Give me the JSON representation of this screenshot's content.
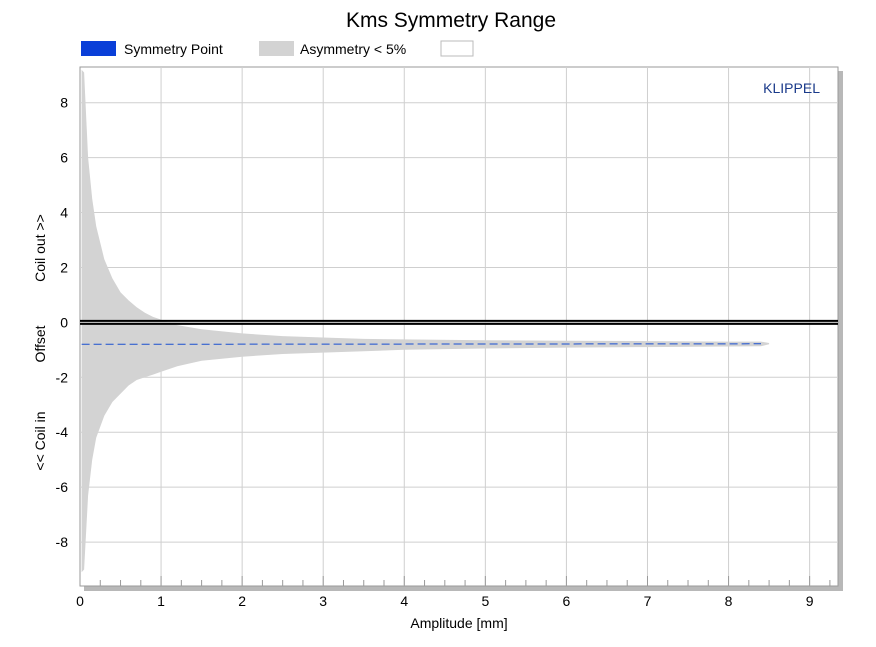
{
  "chart_data": {
    "type": "area",
    "title": "Kms Symmetry Range",
    "xlabel": "Amplitude [mm]",
    "ylabel_parts": [
      "<< Coil in",
      "Offset",
      "Coil out >>"
    ],
    "brand": "KLIPPEL",
    "xlim": [
      0,
      9.35
    ],
    "ylim": [
      -9.6,
      9.3
    ],
    "xticks": [
      "0",
      "1",
      "2",
      "3",
      "4",
      "5",
      "6",
      "7",
      "8",
      "9"
    ],
    "yticks": [
      "8",
      "6",
      "4",
      "2",
      "0",
      "-2",
      "-4",
      "-6",
      "-8"
    ],
    "grid": true,
    "legend": [
      {
        "name": "Symmetry Point",
        "color": "#0a3fd8"
      },
      {
        "name": "Asymmetry < 5%",
        "color": "#d3d3d3"
      },
      {
        "name": "",
        "color": "#ffffff"
      }
    ],
    "series": [
      {
        "name": "Asymmetry < 5%",
        "kind": "band",
        "color": "#d3d3d3",
        "x": [
          0.02,
          0.05,
          0.1,
          0.15,
          0.2,
          0.3,
          0.4,
          0.5,
          0.6,
          0.7,
          0.8,
          0.9,
          1.0,
          1.2,
          1.5,
          2.0,
          2.5,
          3.0,
          3.5,
          4.0,
          5.0,
          6.0,
          7.0,
          8.0,
          8.4,
          8.5
        ],
        "upper": [
          9.2,
          9.1,
          6.0,
          4.5,
          3.5,
          2.3,
          1.6,
          1.1,
          0.8,
          0.55,
          0.35,
          0.2,
          0.1,
          -0.1,
          -0.25,
          -0.4,
          -0.5,
          -0.55,
          -0.6,
          -0.62,
          -0.65,
          -0.67,
          -0.68,
          -0.7,
          -0.7,
          -0.75
        ],
        "lower": [
          -9.1,
          -9.0,
          -6.3,
          -5.0,
          -4.2,
          -3.4,
          -2.9,
          -2.6,
          -2.3,
          -2.1,
          -2.0,
          -1.9,
          -1.8,
          -1.6,
          -1.4,
          -1.25,
          -1.15,
          -1.1,
          -1.05,
          -1.0,
          -0.95,
          -0.92,
          -0.9,
          -0.88,
          -0.87,
          -0.8
        ]
      },
      {
        "name": "Symmetry Point",
        "kind": "dashed-line",
        "color": "#1a4fd0",
        "x": [
          0.02,
          8.4
        ],
        "y": [
          -0.8,
          -0.78
        ]
      },
      {
        "name": "Zero",
        "kind": "reference-line",
        "color": "#000000",
        "y": 0
      }
    ]
  }
}
